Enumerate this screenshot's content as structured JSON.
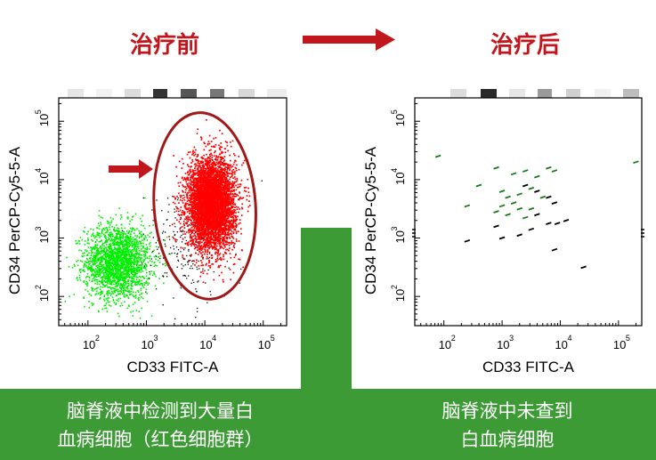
{
  "titles": {
    "before": "治疗前",
    "after": "治疗后"
  },
  "captions": {
    "before_line1": "脑脊液中检测到大量白",
    "before_line2": "血病细胞（红色细胞群）",
    "after_line1": "脑脊液中未查到",
    "after_line2": "白血病细胞"
  },
  "colors": {
    "title_red": "#c0161c",
    "green_bar": "#3d9b35",
    "red_cells": "#ff0000",
    "green_cells": "#00ee00",
    "dark_green_cells": "#1a7a1a"
  },
  "chart_data": [
    {
      "type": "scatter",
      "title": "治疗前",
      "xlabel": "CD33 FITC-A",
      "ylabel": "CD34 PerCP-Cy5-5-A",
      "x_scale": "log",
      "y_scale": "log",
      "xlim_log10": [
        1.5,
        5.4
      ],
      "ylim_log10": [
        1.5,
        5.4
      ],
      "xticks": [
        "10^2",
        "10^3",
        "10^4",
        "10^5"
      ],
      "yticks": [
        "10^2",
        "10^3",
        "10^4",
        "10^5"
      ],
      "series": [
        {
          "name": "normal cells (green)",
          "color": "#00ee00",
          "center_log10": [
            2.5,
            2.6
          ],
          "spread_log10": [
            0.55,
            0.45
          ]
        },
        {
          "name": "leukemia cells (red)",
          "color": "#ff0000",
          "center_log10": [
            4.1,
            3.6
          ],
          "spread_log10": [
            0.35,
            0.85
          ]
        },
        {
          "name": "other events (black)",
          "color": "#000000",
          "center_log10": [
            3.7,
            2.9
          ],
          "spread_log10": [
            0.5,
            0.7
          ]
        }
      ],
      "annotation": "gate ellipse around red population with arrow"
    },
    {
      "type": "scatter",
      "title": "治疗后",
      "xlabel": "CD33 FITC-A",
      "ylabel": "CD34 PerCP-Cy5-5-A",
      "x_scale": "log",
      "y_scale": "log",
      "xlim_log10": [
        1.5,
        5.4
      ],
      "ylim_log10": [
        1.5,
        5.4
      ],
      "xticks": [
        "10^2",
        "10^3",
        "10^4",
        "10^5"
      ],
      "yticks": [
        "10^2",
        "10^3",
        "10^4",
        "10^5"
      ],
      "series": [
        {
          "name": "green events",
          "color": "#1a7a1a",
          "points_log10": [
            [
              1.9,
              4.4
            ],
            [
              2.9,
              4.2
            ],
            [
              3.2,
              4.1
            ],
            [
              3.4,
              4.15
            ],
            [
              3.6,
              4.05
            ],
            [
              3.8,
              4.2
            ],
            [
              3.9,
              4.15
            ],
            [
              2.6,
              3.9
            ],
            [
              3.0,
              3.8
            ],
            [
              3.1,
              3.7
            ],
            [
              3.3,
              3.75
            ],
            [
              3.5,
              3.85
            ],
            [
              3.7,
              3.7
            ],
            [
              3.0,
              3.55
            ],
            [
              3.2,
              3.6
            ],
            [
              3.3,
              3.5
            ],
            [
              3.5,
              3.5
            ],
            [
              2.9,
              3.45
            ],
            [
              3.1,
              3.4
            ],
            [
              3.4,
              3.35
            ],
            [
              2.4,
              3.55
            ],
            [
              5.3,
              4.3
            ]
          ]
        },
        {
          "name": "black events",
          "color": "#000000",
          "points_log10": [
            [
              3.4,
              3.9
            ],
            [
              3.6,
              3.8
            ],
            [
              3.8,
              3.7
            ],
            [
              3.9,
              3.6
            ],
            [
              3.6,
              3.4
            ],
            [
              3.8,
              3.25
            ],
            [
              3.95,
              3.25
            ],
            [
              4.1,
              3.3
            ],
            [
              3.5,
              3.15
            ],
            [
              3.0,
              3.0
            ],
            [
              2.9,
              3.2
            ],
            [
              3.3,
              3.05
            ],
            [
              3.9,
              2.8
            ],
            [
              2.4,
              2.95
            ],
            [
              4.4,
              2.5
            ]
          ]
        }
      ]
    }
  ]
}
